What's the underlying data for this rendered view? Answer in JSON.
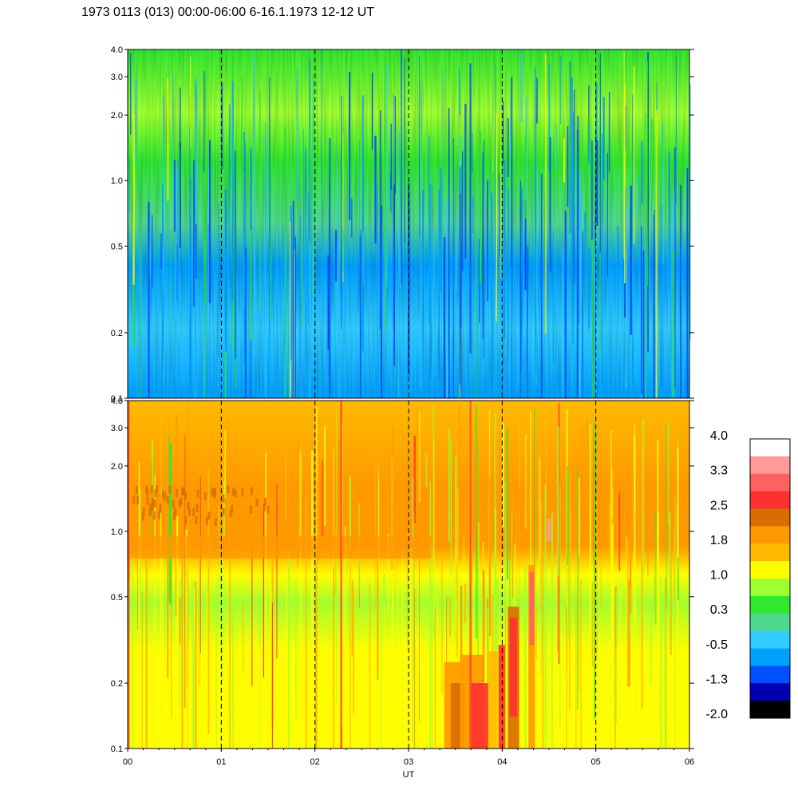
{
  "title": "1973 0113 (013) 00:00-06:00 6-16.1.1973  12-12 UT",
  "chart_data": {
    "type": "heatmap",
    "xlabel": "UT",
    "x_tick_labels": [
      "00",
      "01",
      "02",
      "03",
      "04",
      "05",
      "06"
    ],
    "x_ticks": [
      0,
      1,
      2,
      3,
      4,
      5,
      6
    ],
    "xlim": [
      0,
      6
    ],
    "y_scale": "log",
    "ylim": [
      0.1,
      4.0
    ],
    "y_tick_labels": [
      "0.1",
      "0.2",
      "0.5",
      "1.0",
      "2.0",
      "3.0",
      "4.0"
    ],
    "y_ticks": [
      0.1,
      0.2,
      0.5,
      1.0,
      2.0,
      3.0,
      4.0
    ],
    "dashed_vertical_lines": [
      1,
      2,
      3,
      4,
      5
    ],
    "panels": [
      {
        "name": "upper",
        "dominant_levels": [
          -1.3,
          -0.5,
          0.3,
          1.0
        ]
      },
      {
        "name": "lower",
        "dominant_levels": [
          0.3,
          1.0,
          1.8,
          2.5,
          3.3
        ]
      }
    ],
    "colorbar": {
      "labels": [
        "4.0",
        "3.3",
        "2.5",
        "1.8",
        "1.0",
        "0.3",
        "-0.5",
        "-1.3",
        "-2.0"
      ],
      "colors": [
        "#ffffff",
        "#ff9a9a",
        "#ff6060",
        "#ff3030",
        "#d96d00",
        "#ff9800",
        "#ffba00",
        "#ffff00",
        "#a0ff30",
        "#30e830",
        "#50d890",
        "#30ccff",
        "#00a0ff",
        "#0050ff",
        "#0000b0",
        "#000000"
      ]
    }
  }
}
